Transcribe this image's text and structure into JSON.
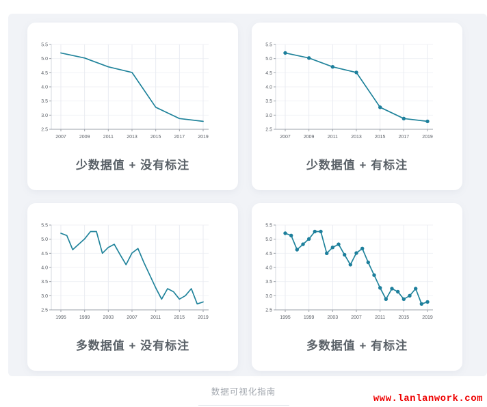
{
  "page": {
    "footer_caption": "数据可视化指南",
    "watermark": "www.lanlanwork.com"
  },
  "colors": {
    "line": "#20839b",
    "marker": "#1d7f9c",
    "grid_h": "#f0f2f6",
    "grid_v": "#e9ebf1",
    "spine_left": "#d5d9df",
    "axis": "#9ba0a8",
    "tick_text": "#5c6168",
    "caption_text": "#596067",
    "footer_text": "#a2a7ae",
    "watermark_red": "#ee0000",
    "panel_bg": "#f1f3f7",
    "card_bg": "#ffffff"
  },
  "cards": [
    {
      "caption": "少数据值 + 没有标注",
      "chart_index": 0
    },
    {
      "caption": "少数据值 + 有标注",
      "chart_index": 1
    },
    {
      "caption": "多数据值 + 没有标注",
      "chart_index": 2
    },
    {
      "caption": "多数据值 + 有标注",
      "chart_index": 3
    }
  ],
  "chart_data": [
    {
      "type": "line",
      "title": "少数据值 + 没有标注",
      "x": [
        2007,
        2009,
        2011,
        2013,
        2015,
        2017,
        2019
      ],
      "values": [
        5.2,
        5.02,
        4.71,
        4.51,
        3.28,
        2.88,
        2.78
      ],
      "markers": false,
      "x_ticks": [
        2007,
        2009,
        2011,
        2013,
        2015,
        2017,
        2019
      ],
      "ylim": [
        2.5,
        5.5
      ],
      "yticks": [
        2.5,
        3.0,
        3.5,
        4.0,
        4.5,
        5.0,
        5.5
      ],
      "grid": true,
      "legend": "none",
      "xlabel": "",
      "ylabel": ""
    },
    {
      "type": "line",
      "title": "少数据值 + 有标注",
      "x": [
        2007,
        2009,
        2011,
        2013,
        2015,
        2017,
        2019
      ],
      "values": [
        5.2,
        5.02,
        4.71,
        4.51,
        3.28,
        2.88,
        2.78
      ],
      "markers": true,
      "x_ticks": [
        2007,
        2009,
        2011,
        2013,
        2015,
        2017,
        2019
      ],
      "ylim": [
        2.5,
        5.5
      ],
      "yticks": [
        2.5,
        3.0,
        3.5,
        4.0,
        4.5,
        5.0,
        5.5
      ],
      "grid": true,
      "legend": "none",
      "xlabel": "",
      "ylabel": ""
    },
    {
      "type": "line",
      "title": "多数据值 + 没有标注",
      "x": [
        1995,
        1996,
        1997,
        1998,
        1999,
        2000,
        2001,
        2002,
        2003,
        2004,
        2005,
        2006,
        2007,
        2008,
        2009,
        2010,
        2011,
        2012,
        2013,
        2014,
        2015,
        2016,
        2017,
        2018,
        2019
      ],
      "values": [
        5.21,
        5.13,
        4.63,
        4.82,
        5.01,
        5.27,
        5.27,
        4.5,
        4.71,
        4.82,
        4.45,
        4.1,
        4.51,
        4.67,
        4.18,
        3.73,
        3.28,
        2.88,
        3.25,
        3.14,
        2.88,
        3.0,
        3.25,
        2.71,
        2.78
      ],
      "markers": false,
      "x_ticks": [
        1995,
        1999,
        2003,
        2007,
        2011,
        2015,
        2019
      ],
      "ylim": [
        2.5,
        5.5
      ],
      "yticks": [
        2.5,
        3.0,
        3.5,
        4.0,
        4.5,
        5.0,
        5.5
      ],
      "grid": true,
      "legend": "none",
      "xlabel": "",
      "ylabel": ""
    },
    {
      "type": "line",
      "title": "多数据值 + 有标注",
      "x": [
        1995,
        1996,
        1997,
        1998,
        1999,
        2000,
        2001,
        2002,
        2003,
        2004,
        2005,
        2006,
        2007,
        2008,
        2009,
        2010,
        2011,
        2012,
        2013,
        2014,
        2015,
        2016,
        2017,
        2018,
        2019
      ],
      "values": [
        5.21,
        5.13,
        4.63,
        4.82,
        5.01,
        5.27,
        5.27,
        4.5,
        4.71,
        4.82,
        4.45,
        4.1,
        4.51,
        4.67,
        4.18,
        3.73,
        3.28,
        2.88,
        3.25,
        3.14,
        2.88,
        3.0,
        3.25,
        2.71,
        2.78
      ],
      "markers": true,
      "x_ticks": [
        1995,
        1999,
        2003,
        2007,
        2011,
        2015,
        2019
      ],
      "ylim": [
        2.5,
        5.5
      ],
      "yticks": [
        2.5,
        3.0,
        3.5,
        4.0,
        4.5,
        5.0,
        5.5
      ],
      "grid": true,
      "legend": "none",
      "xlabel": "",
      "ylabel": ""
    }
  ]
}
